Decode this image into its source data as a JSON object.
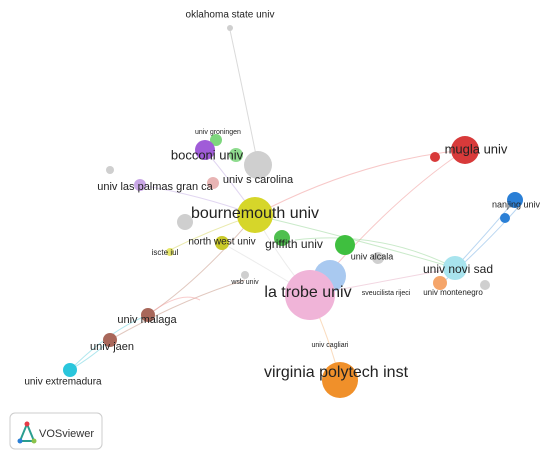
{
  "nodes": [
    {
      "label": "oklahoma state univ"
    },
    {
      "label": "univ groningen"
    },
    {
      "label": "bocconi univ"
    },
    {
      "label": "univ s carolina"
    },
    {
      "label": "univ las palmas gran ca"
    },
    {
      "label": "bournemouth univ"
    },
    {
      "label": "north west univ"
    },
    {
      "label": "iscte iul"
    },
    {
      "label": "griffith univ"
    },
    {
      "label": "univ alcala"
    },
    {
      "label": "wsb univ"
    },
    {
      "label": "la trobe univ"
    },
    {
      "label": "sveucilista rijeci"
    },
    {
      "label": "univ montenegro"
    },
    {
      "label": "univ novi sad"
    },
    {
      "label": "mugla univ"
    },
    {
      "label": "nanjing univ"
    },
    {
      "label": "univ cagliari"
    },
    {
      "label": "virginia polytech inst"
    },
    {
      "label": "univ malaga"
    },
    {
      "label": "univ jaen"
    },
    {
      "label": "univ extremadura"
    }
  ],
  "logo": {
    "label": "VOSviewer"
  }
}
